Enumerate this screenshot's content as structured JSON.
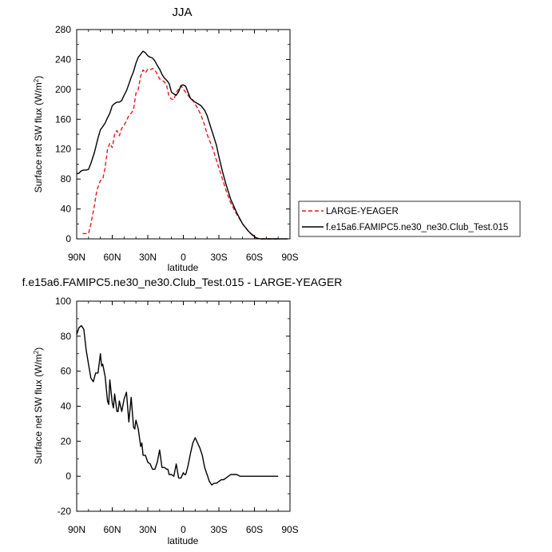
{
  "chart_data": [
    {
      "type": "line",
      "title": "JJA",
      "xlabel": "latitude",
      "ylabel": "Surface net SW flux (W/m",
      "ylabel_sup": "2",
      "ylabel_tail": ")",
      "xlim": [
        90,
        -90
      ],
      "ylim": [
        0,
        280
      ],
      "xticks": [
        90,
        60,
        30,
        0,
        -30,
        -60,
        -90
      ],
      "xtick_labels": [
        "90N",
        "60N",
        "30N",
        "0",
        "30S",
        "60S",
        "90S"
      ],
      "yticks": [
        0,
        40,
        80,
        120,
        160,
        200,
        240,
        280
      ],
      "ytick_labels": [
        "0",
        "40",
        "80",
        "120",
        "160",
        "200",
        "240",
        "280"
      ],
      "legend_placement": "right",
      "series": [
        {
          "name": "LARGE-YEAGER",
          "color": "#e8191c",
          "dashed": true,
          "x": [
            85,
            82,
            80,
            78,
            75,
            73,
            70,
            68,
            66,
            64,
            62,
            60,
            58,
            56,
            54,
            52,
            50,
            48,
            46,
            44,
            42,
            40,
            38,
            36,
            34,
            32,
            30,
            28,
            26,
            24,
            22,
            20,
            18,
            16,
            14,
            12,
            10,
            8,
            6,
            4,
            2,
            0,
            -2,
            -4,
            -6,
            -8,
            -10,
            -12,
            -15,
            -18,
            -20,
            -22,
            -25,
            -28,
            -30,
            -33,
            -36,
            -40,
            -45,
            -50,
            -55,
            -60,
            -62,
            -65,
            -70,
            -75,
            -80
          ],
          "y": [
            7,
            7,
            7,
            20,
            45,
            65,
            78,
            80,
            95,
            120,
            128,
            122,
            140,
            145,
            138,
            148,
            152,
            158,
            165,
            168,
            173,
            195,
            200,
            218,
            226,
            222,
            227,
            226,
            228,
            226,
            220,
            214,
            212,
            210,
            205,
            190,
            187,
            186,
            196,
            200,
            205,
            200,
            196,
            192,
            188,
            186,
            180,
            175,
            165,
            152,
            140,
            132,
            120,
            105,
            95,
            80,
            65,
            48,
            33,
            20,
            10,
            2,
            1,
            0,
            0,
            0,
            0
          ]
        },
        {
          "name": "f.e15a6.FAMIPC5.ne30_ne30.Club_Test.015",
          "color": "#000000",
          "dashed": false,
          "x": [
            90,
            88,
            86,
            84,
            82,
            80,
            78,
            75,
            72,
            70,
            68,
            66,
            64,
            62,
            60,
            58,
            56,
            54,
            52,
            50,
            48,
            46,
            44,
            42,
            40,
            38,
            36,
            34,
            32,
            30,
            28,
            26,
            24,
            22,
            20,
            18,
            16,
            14,
            12,
            10,
            8,
            6,
            4,
            2,
            0,
            -2,
            -4,
            -6,
            -8,
            -10,
            -12,
            -15,
            -18,
            -20,
            -22,
            -25,
            -28,
            -30,
            -33,
            -36,
            -40,
            -45,
            -50,
            -55,
            -60,
            -62,
            -65,
            -70,
            -75,
            -80,
            -85,
            -88
          ],
          "y": [
            87,
            88,
            91,
            92,
            92,
            93,
            101,
            116,
            135,
            146,
            150,
            155,
            162,
            168,
            178,
            181,
            183,
            183,
            185,
            192,
            198,
            207,
            216,
            224,
            235,
            243,
            247,
            251,
            249,
            245,
            243,
            242,
            238,
            232,
            227,
            220,
            215,
            212,
            208,
            196,
            194,
            192,
            197,
            205,
            206,
            204,
            196,
            188,
            185,
            183,
            181,
            178,
            172,
            165,
            155,
            140,
            125,
            110,
            90,
            73,
            53,
            35,
            20,
            10,
            3,
            1,
            0,
            0,
            0,
            0,
            0,
            0
          ]
        }
      ]
    },
    {
      "type": "line",
      "title": "f.e15a6.FAMIPC5.ne30_ne30.Club_Test.015 - LARGE-YEAGER",
      "xlabel": "latitude",
      "ylabel": "Surface net SW flux (W/m",
      "ylabel_sup": "2",
      "ylabel_tail": ")",
      "xlim": [
        90,
        -90
      ],
      "ylim": [
        -20,
        100
      ],
      "xticks": [
        90,
        60,
        30,
        0,
        -30,
        -60,
        -90
      ],
      "xtick_labels": [
        "90N",
        "60N",
        "30N",
        "0",
        "30S",
        "60S",
        "90S"
      ],
      "yticks": [
        -20,
        0,
        20,
        40,
        60,
        80,
        100
      ],
      "ytick_labels": [
        "-20",
        "0",
        "20",
        "40",
        "60",
        "80",
        "100"
      ],
      "series": [
        {
          "color": "#000000",
          "dashed": false,
          "x": [
            90,
            88,
            86,
            84,
            82,
            80,
            78,
            76,
            74,
            72,
            70,
            69,
            68,
            66,
            64,
            63,
            62,
            60,
            59,
            58,
            56,
            55,
            54,
            52,
            50,
            48,
            46,
            44,
            42,
            41,
            40,
            38,
            36,
            35,
            34,
            32,
            30,
            28,
            26,
            24,
            22,
            20,
            18,
            16,
            14,
            13,
            12,
            10,
            8,
            6,
            4,
            2,
            0,
            -1,
            -2,
            -4,
            -6,
            -8,
            -10,
            -12,
            -14,
            -16,
            -18,
            -20,
            -22,
            -24,
            -26,
            -28,
            -30,
            -32,
            -34,
            -36,
            -38,
            -40,
            -42,
            -45,
            -48,
            -50,
            -52,
            -55,
            -58,
            -60,
            -65,
            -70,
            -75,
            -80
          ],
          "y": [
            81,
            85,
            86,
            84,
            72,
            64,
            56,
            54,
            59,
            59,
            70,
            63,
            64,
            57,
            43,
            41,
            55,
            42,
            39,
            47,
            37,
            37,
            43,
            37,
            44,
            48,
            31,
            45,
            28,
            27,
            32,
            27,
            17,
            19,
            12,
            12,
            8,
            7,
            4,
            4,
            8,
            15,
            5,
            5,
            4,
            4,
            1,
            1,
            0,
            7,
            -1,
            -1,
            2,
            1,
            1,
            6,
            13,
            19,
            22,
            19,
            16,
            12,
            5,
            1,
            -3,
            -5,
            -4,
            -4,
            -3,
            -2,
            -2,
            -1,
            0,
            1,
            1,
            1,
            0,
            0,
            0,
            0,
            0,
            0,
            0,
            0,
            0,
            0
          ]
        }
      ]
    }
  ]
}
